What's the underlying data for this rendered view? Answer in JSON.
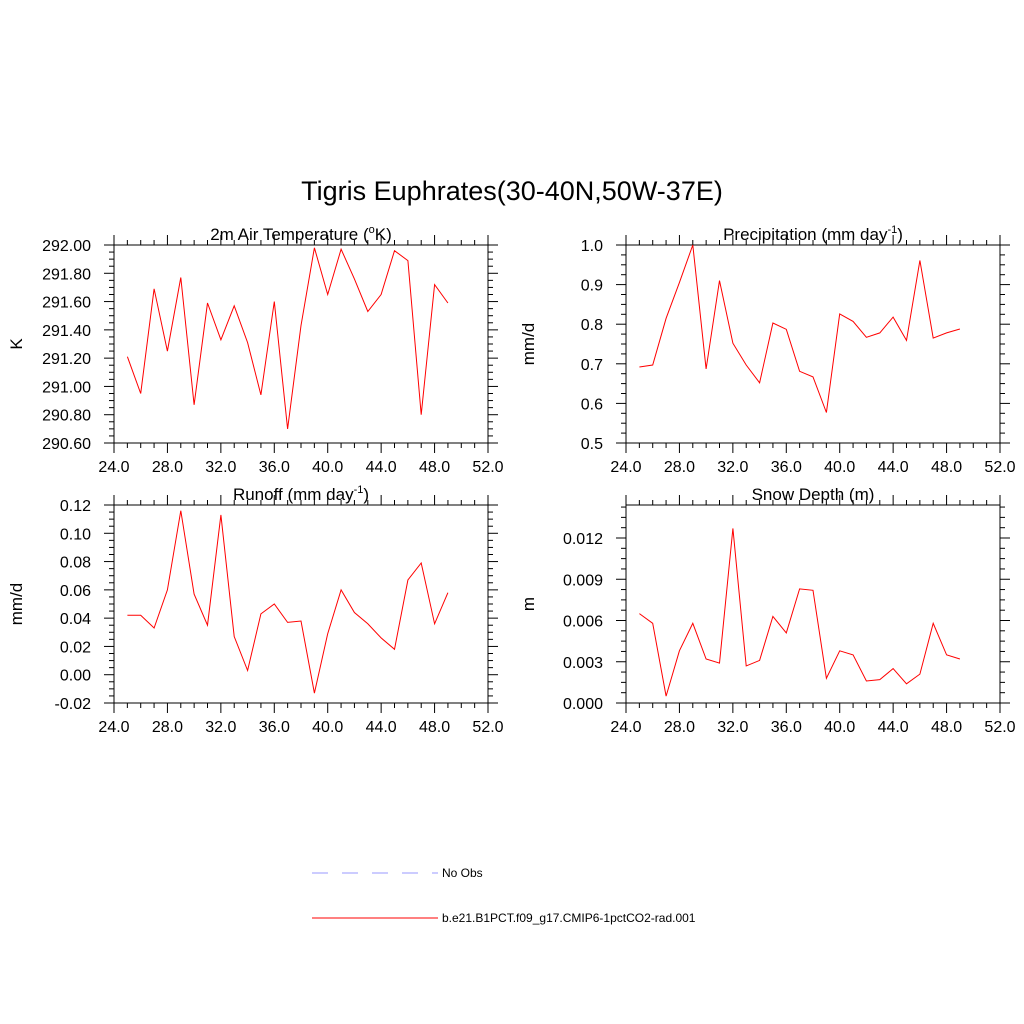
{
  "title": "Tigris Euphrates(30-40N,50W-37E)",
  "colors": {
    "model": "#ff0000",
    "obs": "#9999ff"
  },
  "legend": {
    "obs_label": "No Obs",
    "model_label": "b.e21.B1PCT.f09_g17.CMIP6-1pctCO2-rad.001"
  },
  "chart_data": [
    {
      "type": "line",
      "title": "2m Air Temperature (",
      "title_sup": "o",
      "title_after": "K)",
      "ylabel": "K",
      "xlim": [
        24,
        52
      ],
      "ylim": [
        290.6,
        292.0
      ],
      "xticks": [
        24,
        28,
        32,
        36,
        40,
        44,
        48,
        52
      ],
      "xtick_labels": [
        "24.0",
        "28.0",
        "32.0",
        "36.0",
        "40.0",
        "44.0",
        "48.0",
        "52.0"
      ],
      "yticks": [
        290.6,
        290.8,
        291.0,
        291.2,
        291.4,
        291.6,
        291.8,
        292.0
      ],
      "ytick_labels": [
        "290.60",
        "290.80",
        "291.00",
        "291.20",
        "291.40",
        "291.60",
        "291.80",
        "292.00"
      ],
      "series": [
        {
          "x": [
            25,
            26,
            27,
            28,
            29,
            30,
            31,
            32,
            33,
            34,
            35,
            36,
            37,
            38,
            39,
            40,
            41,
            42,
            43,
            44,
            45,
            46,
            47,
            48,
            49
          ],
          "values": [
            291.21,
            290.95,
            291.69,
            291.25,
            291.77,
            290.87,
            291.59,
            291.33,
            291.57,
            291.31,
            290.94,
            291.6,
            290.7,
            291.43,
            291.98,
            291.65,
            291.97,
            291.76,
            291.53,
            291.65,
            291.96,
            291.89,
            290.8,
            291.72,
            291.59
          ]
        }
      ]
    },
    {
      "type": "line",
      "title": "Precipitation (mm day",
      "title_sup": "-1",
      "title_after": ")",
      "ylabel": "mm/d",
      "xlim": [
        24,
        52
      ],
      "ylim": [
        0.5,
        1.0
      ],
      "xticks": [
        24,
        28,
        32,
        36,
        40,
        44,
        48,
        52
      ],
      "xtick_labels": [
        "24.0",
        "28.0",
        "32.0",
        "36.0",
        "40.0",
        "44.0",
        "48.0",
        "52.0"
      ],
      "yticks": [
        0.5,
        0.6,
        0.7,
        0.8,
        0.9,
        1.0
      ],
      "ytick_labels": [
        "0.5",
        "0.6",
        "0.7",
        "0.8",
        "0.9",
        "1.0"
      ],
      "series": [
        {
          "x": [
            25,
            26,
            27,
            28,
            29,
            30,
            31,
            32,
            33,
            34,
            35,
            36,
            37,
            38,
            39,
            40,
            41,
            42,
            43,
            44,
            45,
            46,
            47,
            48,
            49
          ],
          "values": [
            0.692,
            0.697,
            0.815,
            0.905,
            1.0,
            0.687,
            0.91,
            0.752,
            0.697,
            0.652,
            0.803,
            0.787,
            0.681,
            0.667,
            0.577,
            0.826,
            0.807,
            0.767,
            0.778,
            0.818,
            0.759,
            0.961,
            0.765,
            0.778,
            0.788
          ]
        }
      ]
    },
    {
      "type": "line",
      "title": "Runoff (mm day",
      "title_sup": "-1",
      "title_after": ")",
      "ylabel": "mm/d",
      "xlim": [
        24,
        52
      ],
      "ylim": [
        -0.02,
        0.12
      ],
      "xticks": [
        24,
        28,
        32,
        36,
        40,
        44,
        48,
        52
      ],
      "xtick_labels": [
        "24.0",
        "28.0",
        "32.0",
        "36.0",
        "40.0",
        "44.0",
        "48.0",
        "52.0"
      ],
      "yticks": [
        -0.02,
        0.0,
        0.02,
        0.04,
        0.06,
        0.08,
        0.1,
        0.12
      ],
      "ytick_labels": [
        "-0.02",
        "0.00",
        "0.02",
        "0.04",
        "0.06",
        "0.08",
        "0.10",
        "0.12"
      ],
      "series": [
        {
          "x": [
            25,
            26,
            27,
            28,
            29,
            30,
            31,
            32,
            33,
            34,
            35,
            36,
            37,
            38,
            39,
            40,
            41,
            42,
            43,
            44,
            45,
            46,
            47,
            48,
            49
          ],
          "values": [
            0.042,
            0.042,
            0.033,
            0.06,
            0.116,
            0.057,
            0.035,
            0.113,
            0.027,
            0.003,
            0.043,
            0.05,
            0.037,
            0.038,
            -0.013,
            0.029,
            0.06,
            0.044,
            0.036,
            0.026,
            0.018,
            0.067,
            0.079,
            0.036,
            0.058
          ]
        }
      ]
    },
    {
      "type": "line",
      "title": "Snow Depth (m)",
      "title_sup": "",
      "title_after": "",
      "ylabel": "m",
      "xlim": [
        24,
        52
      ],
      "ylim": [
        0.0,
        0.0144
      ],
      "xticks": [
        24,
        28,
        32,
        36,
        40,
        44,
        48,
        52
      ],
      "xtick_labels": [
        "24.0",
        "28.0",
        "32.0",
        "36.0",
        "40.0",
        "44.0",
        "48.0",
        "52.0"
      ],
      "yticks": [
        0.0,
        0.003,
        0.006,
        0.009,
        0.012
      ],
      "ytick_labels": [
        "0.000",
        "0.003",
        "0.006",
        "0.009",
        "0.012"
      ],
      "series": [
        {
          "x": [
            25,
            26,
            27,
            28,
            29,
            30,
            31,
            32,
            33,
            34,
            35,
            36,
            37,
            38,
            39,
            40,
            41,
            42,
            43,
            44,
            45,
            46,
            47,
            48,
            49
          ],
          "values": [
            0.0065,
            0.0058,
            0.0005,
            0.0038,
            0.0058,
            0.0032,
            0.0029,
            0.0127,
            0.0027,
            0.0031,
            0.0063,
            0.0051,
            0.0083,
            0.0082,
            0.0018,
            0.0038,
            0.0035,
            0.0016,
            0.0017,
            0.0025,
            0.0014,
            0.0021,
            0.0058,
            0.0035,
            0.0032
          ]
        }
      ]
    }
  ]
}
